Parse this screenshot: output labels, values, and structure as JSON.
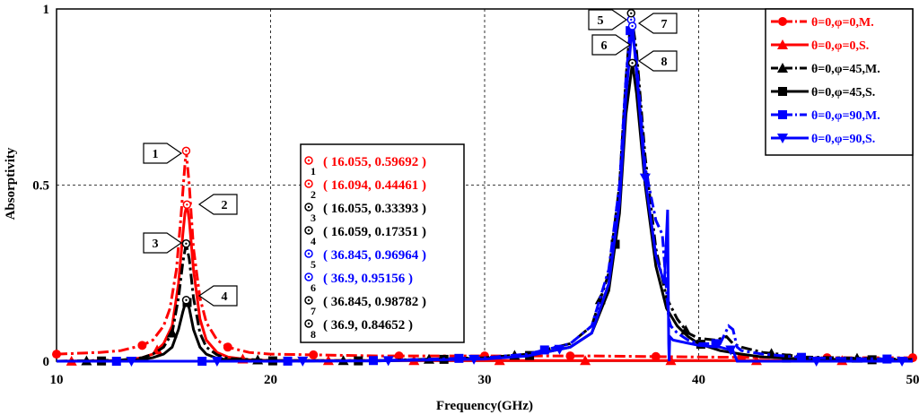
{
  "chart_data": {
    "type": "line",
    "xlabel": "Frequency(GHz)",
    "ylabel": "Absorptivity",
    "xlim": [
      10,
      50
    ],
    "ylim": [
      0,
      1
    ],
    "x_ticks": [
      "10",
      "20",
      "30",
      "40",
      "50"
    ],
    "y_ticks": [
      "0",
      "0.5",
      "1"
    ],
    "grid": true,
    "legend_position": "top-right",
    "series": [
      {
        "name": "θ=0,φ=0,M.",
        "color": "#ff0000",
        "dash": "dashdot",
        "marker": "circle",
        "x": [
          10,
          12,
          13,
          14,
          14.5,
          15,
          15.3,
          15.6,
          15.8,
          16.0,
          16.055,
          16.2,
          16.4,
          16.7,
          17.0,
          17.5,
          18,
          19,
          20,
          25,
          30,
          35,
          40,
          45,
          50
        ],
        "y": [
          0.02,
          0.025,
          0.03,
          0.045,
          0.06,
          0.1,
          0.15,
          0.26,
          0.4,
          0.56,
          0.59692,
          0.5,
          0.32,
          0.18,
          0.11,
          0.06,
          0.04,
          0.025,
          0.02,
          0.015,
          0.015,
          0.015,
          0.012,
          0.01,
          0.01
        ]
      },
      {
        "name": "θ=0,φ=0,S.",
        "color": "#ff0000",
        "dash": "solid",
        "marker": "triangle-up",
        "x": [
          10,
          13,
          14,
          14.5,
          15,
          15.4,
          15.7,
          15.9,
          16.0,
          16.094,
          16.2,
          16.4,
          16.7,
          17.0,
          17.5,
          18,
          19,
          20,
          25,
          30,
          35,
          40,
          45,
          50
        ],
        "y": [
          0.0,
          0.002,
          0.01,
          0.02,
          0.05,
          0.1,
          0.22,
          0.36,
          0.42,
          0.44461,
          0.4,
          0.26,
          0.12,
          0.06,
          0.025,
          0.012,
          0.004,
          0.002,
          0.002,
          0.002,
          0.002,
          0.002,
          0.002,
          0.002
        ]
      },
      {
        "name": "θ=0,φ=45,M.",
        "color": "#000000",
        "dash": "dashdot",
        "marker": "triangle-up",
        "x": [
          10,
          13,
          14,
          14.5,
          15,
          15.4,
          15.7,
          15.9,
          16.055,
          16.2,
          16.4,
          16.7,
          17.0,
          17.5,
          18,
          20,
          25,
          30,
          32,
          34,
          35,
          35.8,
          36.3,
          36.6,
          36.845,
          37.1,
          37.5,
          38.0,
          38.5,
          39.0,
          39.5,
          40,
          40.8,
          41.3,
          41.6,
          42,
          43,
          45,
          50
        ],
        "y": [
          0.0,
          0.003,
          0.01,
          0.02,
          0.04,
          0.08,
          0.18,
          0.28,
          0.33393,
          0.29,
          0.18,
          0.08,
          0.04,
          0.018,
          0.008,
          0.002,
          0.002,
          0.01,
          0.02,
          0.05,
          0.1,
          0.25,
          0.5,
          0.8,
          0.98782,
          0.88,
          0.58,
          0.32,
          0.18,
          0.12,
          0.08,
          0.065,
          0.06,
          0.07,
          0.05,
          0.04,
          0.025,
          0.012,
          0.005
        ]
      },
      {
        "name": "θ=0,φ=45,S.",
        "color": "#000000",
        "dash": "solid",
        "marker": "square",
        "x": [
          10,
          13,
          14,
          14.5,
          15,
          15.4,
          15.7,
          15.9,
          16.059,
          16.2,
          16.4,
          16.7,
          17.0,
          17.5,
          18,
          20,
          25,
          30,
          32,
          34,
          35,
          35.8,
          36.3,
          36.6,
          36.9,
          37.1,
          37.5,
          38.0,
          38.5,
          39.0,
          39.5,
          40,
          41,
          42,
          43,
          45,
          50
        ],
        "y": [
          0.0,
          0.001,
          0.005,
          0.01,
          0.02,
          0.04,
          0.09,
          0.14,
          0.17351,
          0.15,
          0.09,
          0.04,
          0.02,
          0.008,
          0.004,
          0.001,
          0.001,
          0.008,
          0.015,
          0.04,
          0.08,
          0.2,
          0.42,
          0.7,
          0.84652,
          0.76,
          0.5,
          0.27,
          0.15,
          0.1,
          0.07,
          0.05,
          0.03,
          0.02,
          0.012,
          0.006,
          0.003
        ]
      },
      {
        "name": "θ=0,φ=90,M.",
        "color": "#0000ff",
        "dash": "dashdot",
        "marker": "square",
        "x": [
          10,
          20,
          25,
          30,
          32,
          34,
          35,
          35.8,
          36.3,
          36.6,
          36.845,
          37.1,
          37.5,
          38.0,
          38.3,
          38.5,
          38.6,
          38.7,
          39.0,
          39.5,
          40,
          41,
          41.4,
          41.6,
          41.8,
          42,
          43,
          45,
          50
        ],
        "y": [
          0.0,
          0.0,
          0.002,
          0.01,
          0.02,
          0.05,
          0.1,
          0.26,
          0.5,
          0.8,
          0.96964,
          0.85,
          0.55,
          0.4,
          0.36,
          0.2,
          0.12,
          0.1,
          0.08,
          0.06,
          0.05,
          0.05,
          0.1,
          0.09,
          0.04,
          0.03,
          0.02,
          0.01,
          0.005
        ]
      },
      {
        "name": "θ=0,φ=90,S.",
        "color": "#0000ff",
        "dash": "solid",
        "marker": "triangle-down",
        "x": [
          10,
          20,
          25,
          30,
          32,
          34,
          35,
          35.8,
          36.3,
          36.6,
          36.9,
          37.1,
          37.5,
          38.0,
          38.4,
          38.55,
          38.6,
          38.62,
          38.65,
          38.8,
          39.2,
          40,
          41,
          41.6,
          41.8,
          42,
          43,
          45,
          50
        ],
        "y": [
          0.0,
          0.0,
          0.001,
          0.006,
          0.015,
          0.04,
          0.08,
          0.22,
          0.45,
          0.75,
          0.95156,
          0.82,
          0.52,
          0.3,
          0.22,
          0.43,
          0.05,
          0.0,
          0.07,
          0.06,
          0.055,
          0.045,
          0.04,
          0.03,
          0.0,
          0.0,
          0.0,
          0.0,
          0.0
        ]
      }
    ],
    "markers": [
      {
        "id": "1",
        "x": 16.055,
        "y": 0.59692,
        "color": "#ff0000",
        "label": "( 16.055, 0.59692 )"
      },
      {
        "id": "2",
        "x": 16.094,
        "y": 0.44461,
        "color": "#ff0000",
        "label": "( 16.094, 0.44461 )"
      },
      {
        "id": "3",
        "x": 16.055,
        "y": 0.33393,
        "color": "#000000",
        "label": "( 16.055, 0.33393 )"
      },
      {
        "id": "4",
        "x": 16.059,
        "y": 0.17351,
        "color": "#000000",
        "label": "( 16.059, 0.17351 )"
      },
      {
        "id": "5",
        "x": 36.845,
        "y": 0.96964,
        "color": "#0000ff",
        "label": "( 36.845, 0.96964 )"
      },
      {
        "id": "6",
        "x": 36.9,
        "y": 0.95156,
        "color": "#0000ff",
        "label": "( 36.9, 0.95156 )"
      },
      {
        "id": "7",
        "x": 36.845,
        "y": 0.98782,
        "color": "#000000",
        "label": "( 36.845, 0.98782 )"
      },
      {
        "id": "8",
        "x": 36.9,
        "y": 0.84652,
        "color": "#000000",
        "label": "( 36.9, 0.84652 )"
      }
    ]
  }
}
